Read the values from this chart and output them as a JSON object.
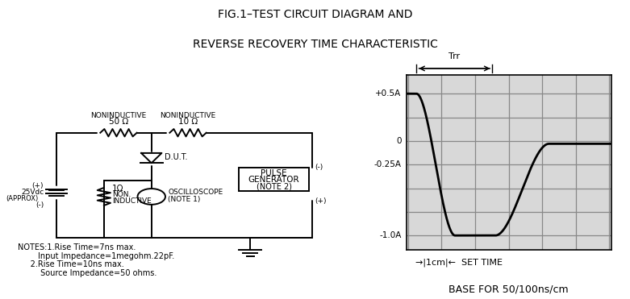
{
  "title_line1": "FIG.1–TEST CIRCUIT DIAGRAM AND",
  "title_line2": "REVERSE RECOVERY TIME CHARACTERISTIC",
  "bg_color": "#ffffff",
  "text_color": "#000000",
  "graph_bg_color": "#d8d8d8",
  "graph_grid_color": "#888888",
  "graph_yticks": [
    "+0.5A",
    "0",
    "-0.25A",
    "-1.0A"
  ],
  "graph_yvals": [
    0.5,
    0.0,
    -0.25,
    -1.0
  ],
  "graph_ylim": [
    -1.15,
    0.7
  ],
  "graph_xlim": [
    -0.05,
    6.05
  ],
  "notes_line1": "NOTES:1.Rise Time=7ns max.",
  "notes_line2": "        Input Impedance=1megohm.22pF.",
  "notes_line3": "     2.Rise Time=10ns max.",
  "notes_line4": "         Source Impedance=50 ohms.",
  "base_text": "BASE FOR 50/100ns/cm",
  "trr_text": "Trr",
  "set_time_label": "SET TIME",
  "one_cm_label": "1cm"
}
